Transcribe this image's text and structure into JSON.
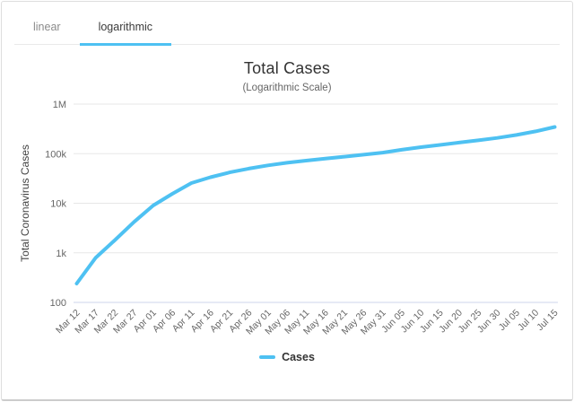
{
  "tabs": [
    {
      "label": "linear",
      "active": false
    },
    {
      "label": "logarithmic",
      "active": true
    }
  ],
  "chart": {
    "title": "Total Cases",
    "subtitle": "(Logarithmic Scale)",
    "y_axis_title": "Total Coronavirus Cases",
    "legend_label": "Cases"
  },
  "colors": {
    "accent": "#4ec1f2",
    "grid": "#e7e7e7",
    "x_axis_line": "#ccd6eb",
    "tick_label": "#666666",
    "y_axis_title": "#444444"
  },
  "chart_data": {
    "type": "line",
    "scale": "logarithmic",
    "title": "Total Cases",
    "subtitle": "(Logarithmic Scale)",
    "xlabel": "",
    "ylabel": "Total Coronavirus Cases",
    "legend": [
      "Cases"
    ],
    "legend_position": "bottom",
    "grid": true,
    "ylim": [
      100,
      1000000
    ],
    "y_ticks": [
      {
        "label": "100",
        "value": 100
      },
      {
        "label": "1k",
        "value": 1000
      },
      {
        "label": "10k",
        "value": 10000
      },
      {
        "label": "100k",
        "value": 100000
      },
      {
        "label": "1M",
        "value": 1000000
      }
    ],
    "categories": [
      "Mar 12",
      "Mar 17",
      "Mar 22",
      "Mar 27",
      "Apr 01",
      "Apr 06",
      "Apr 11",
      "Apr 16",
      "Apr 21",
      "Apr 26",
      "May 01",
      "May 06",
      "May 11",
      "May 16",
      "May 21",
      "May 26",
      "May 31",
      "Jun 05",
      "Jun 10",
      "Jun 15",
      "Jun 20",
      "Jun 25",
      "Jun 30",
      "Jul 05",
      "Jul 10",
      "Jul 15"
    ],
    "series": [
      {
        "name": "Cases",
        "values": [
          240,
          800,
          1800,
          4200,
          9000,
          15500,
          25500,
          33500,
          42000,
          50000,
          58000,
          65500,
          72500,
          79500,
          87000,
          95500,
          105000,
          120000,
          135000,
          150000,
          167000,
          186000,
          208000,
          238000,
          282000,
          345000
        ]
      }
    ]
  }
}
